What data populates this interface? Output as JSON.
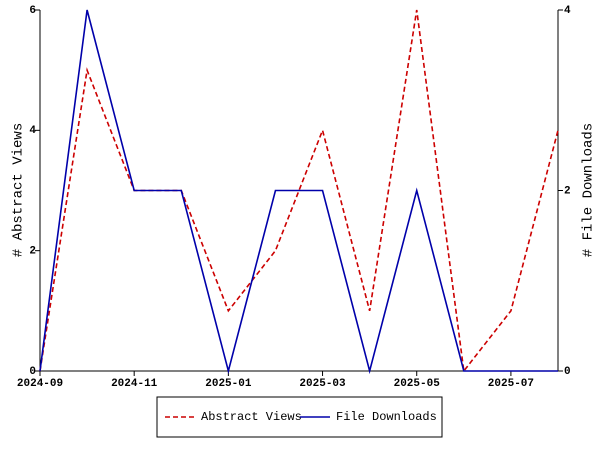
{
  "chart_data": {
    "type": "line",
    "x": [
      "2024-09",
      "2024-10",
      "2024-11",
      "2024-12",
      "2025-01",
      "2025-02",
      "2025-03",
      "2025-04",
      "2025-05",
      "2025-06",
      "2025-07",
      "2025-08"
    ],
    "xlim": [
      "2024-09",
      "2025-08"
    ],
    "xticks": [
      "2024-09",
      "2024-11",
      "2025-01",
      "2025-03",
      "2025-05",
      "2025-07"
    ],
    "ylabel": "# Abstract Views",
    "y2label": "# File Downloads",
    "ylim": [
      0,
      6
    ],
    "yticks": [
      0,
      2,
      4,
      6
    ],
    "y2lim": [
      0,
      4
    ],
    "y2ticks": [
      0,
      2,
      4
    ],
    "legend": "bottom",
    "series": [
      {
        "name": "Abstract Views",
        "color": "#cc0000",
        "dashed": true,
        "values": [
          0,
          5,
          3,
          3,
          1,
          2,
          4,
          1,
          6,
          0,
          1,
          4
        ]
      },
      {
        "name": "File Downloads",
        "color": "#0000aa",
        "dashed": false,
        "axis": "y2",
        "values": [
          0,
          4,
          2,
          2,
          0,
          2,
          2,
          0,
          2,
          0,
          0,
          0
        ]
      }
    ]
  }
}
